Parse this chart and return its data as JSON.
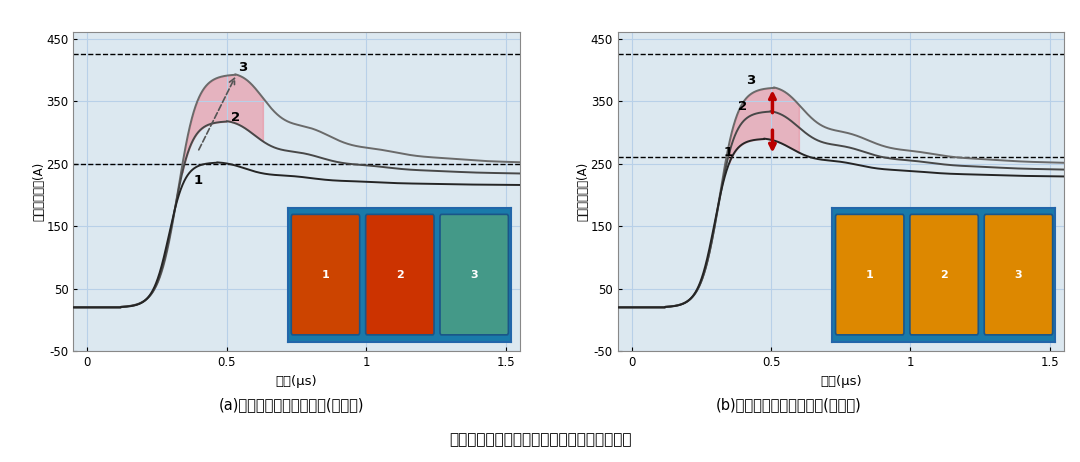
{
  "title_a": "(a)部分交错式多芯片布置(优化前)",
  "title_b": "(b)水平对齐式多芯片布置(优化后)",
  "main_title": "多芯片并联结构芯片布置范式自由度优化实例",
  "ylabel": "芯片支路电流(A)",
  "xlabel": "时间(μs)",
  "xlim": [
    -0.05,
    1.55
  ],
  "ylim": [
    -50,
    460
  ],
  "ytick_vals": [
    -50,
    50,
    150,
    250,
    350,
    450
  ],
  "ytick_labels": [
    "-50",
    "50",
    "150",
    "250",
    "350",
    "450"
  ],
  "xtick_vals": [
    0.0,
    0.5,
    1.0,
    1.5
  ],
  "xtick_labels": [
    "0",
    "0.5",
    "1",
    "1.5"
  ],
  "dashed_a": [
    425,
    250
  ],
  "dashed_b": [
    425,
    260
  ],
  "plot_bg": "#dce8f0",
  "pink_color": "#ee8090",
  "curve_dark": "#252525",
  "curve_mid": "#484848",
  "curve_light": "#6a6a6a",
  "arrow_red": "#bb0000",
  "label_a_peaks": [
    [
      0.54,
      398,
      "3"
    ],
    [
      0.515,
      318,
      "2"
    ],
    [
      0.38,
      218,
      "1"
    ]
  ],
  "label_b_peaks": [
    [
      0.41,
      377,
      "3"
    ],
    [
      0.38,
      335,
      "2"
    ],
    [
      0.33,
      262,
      "1"
    ]
  ],
  "chip_colors_left": [
    "#cc4400",
    "#cc3300",
    "#449988"
  ],
  "chip_colors_right": [
    "#dd8800",
    "#dd8800",
    "#dd8800"
  ]
}
